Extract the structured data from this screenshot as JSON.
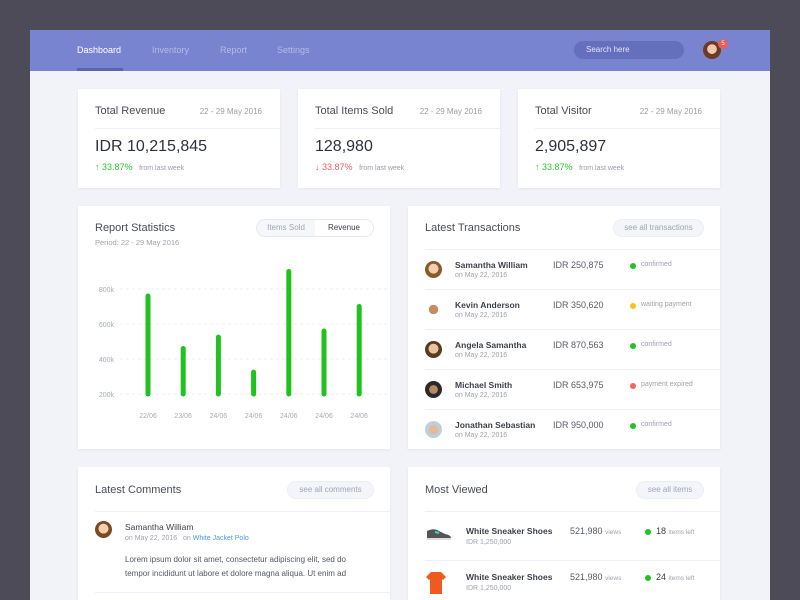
{
  "nav": {
    "items": [
      "Dashboard",
      "Inventory",
      "Report",
      "Settings"
    ],
    "active": "Dashboard",
    "search_placeholder": "Search here",
    "notification_count": "5"
  },
  "stats": [
    {
      "title": "Total Revenue",
      "date": "22 - 29 May 2016",
      "value": "IDR 10,215,845",
      "direction": "up",
      "change": "33.87%",
      "from": "from last week"
    },
    {
      "title": "Total Items Sold",
      "date": "22 - 29 May 2016",
      "value": "128,980",
      "direction": "down",
      "change": "33.87%",
      "from": "from last week"
    },
    {
      "title": "Total Visitor",
      "date": "22 - 29 May 2016",
      "value": "2,905,897",
      "direction": "up",
      "change": "33.87%",
      "from": "from last week"
    }
  ],
  "report": {
    "title": "Report Statistics",
    "period": "Period: 22 - 29 May 2016",
    "toggle": [
      "Items Sold",
      "Revenue"
    ],
    "active_toggle": "Revenue"
  },
  "chart_data": {
    "type": "bar",
    "categories": [
      "22/06",
      "23/06",
      "24/06",
      "24/06",
      "24/06",
      "24/06",
      "24/06"
    ],
    "values": [
      760000,
      460000,
      525000,
      325000,
      900000,
      560000,
      700000
    ],
    "baseline": 200000,
    "yticks": [
      {
        "v": 200000,
        "label": "200k"
      },
      {
        "v": 400000,
        "label": "400k"
      },
      {
        "v": 600000,
        "label": "600k"
      },
      {
        "v": 800000,
        "label": "800k"
      }
    ],
    "grid": true,
    "bar_color": "#1fc21f"
  },
  "transactions": {
    "title": "Latest Transactions",
    "see_all": "see all transactions",
    "items": [
      {
        "name": "Samantha William",
        "date": "on May 22, 2016",
        "amount": "IDR 250,875",
        "status": "confirmed",
        "status_color": "#1fc21f"
      },
      {
        "name": "Kevin Anderson",
        "date": "on May 22, 2016",
        "amount": "IDR 350,620",
        "status": "waiting payment",
        "status_color": "#f7c21a"
      },
      {
        "name": "Angela Samantha",
        "date": "on May 22, 2016",
        "amount": "IDR 870,563",
        "status": "confirmed",
        "status_color": "#1fc21f"
      },
      {
        "name": "Michael Smith",
        "date": "on May 22, 2016",
        "amount": "IDR 653,975",
        "status": "payment expired",
        "status_color": "#f06464"
      },
      {
        "name": "Jonathan Sebastian",
        "date": "on May 22, 2016",
        "amount": "IDR 950,000",
        "status": "confirmed",
        "status_color": "#1fc21f"
      }
    ]
  },
  "comments": {
    "title": "Latest Comments",
    "see_all": "see all comments",
    "items": [
      {
        "name": "Samantha William",
        "date": "on May 22, 2016",
        "on": "on",
        "item": "White Jacket Polo",
        "text1": "Lorem ipsum dolor sit amet, consectetur adipiscing elit, sed do",
        "text2": "tempor incididunt ut labore et dolore magna aliqua. Ut enim ad"
      }
    ]
  },
  "most_viewed": {
    "title": "Most Viewed",
    "see_all": "see all items",
    "items": [
      {
        "name": "White Sneaker Shoes",
        "price": "IDR 1,250,000",
        "views": "521,980",
        "views_label": "views",
        "left": "18",
        "left_label": "items left",
        "icon": "sneaker-icon"
      },
      {
        "name": "White Sneaker Shoes",
        "price": "IDR 1,250,000",
        "views": "521,980",
        "views_label": "views",
        "left": "24",
        "left_label": "items left",
        "icon": "tshirt-icon"
      }
    ]
  }
}
